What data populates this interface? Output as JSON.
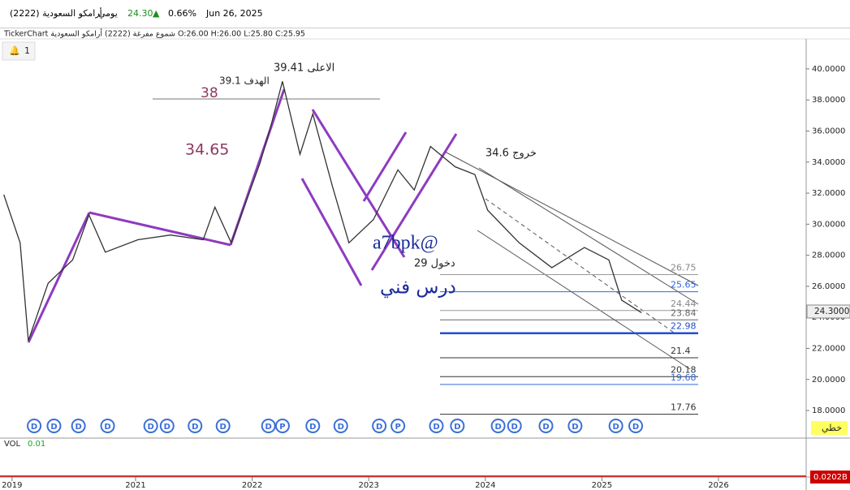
{
  "header": {
    "symbol": "أرامكو السعودية  (2222)",
    "period": "يومي",
    "price": "24.30",
    "change": "0.66%",
    "date": "Jun 26, 2025",
    "info": "TickerChart  شموع مفرغة  (2222)  أرامكو السعودية   O:26.00  H:26.00  L:25.80  C:25.95",
    "alerts": "1",
    "chart_type": "خطي",
    "volume": "VOL",
    "volume_value": "0.01",
    "volume_axis": "0.0202B"
  },
  "chart_data": {
    "type": "line",
    "color": "#333333",
    "x": [
      2019.87,
      2020.01,
      2020.08,
      2020.25,
      2020.46,
      2020.6,
      2020.74,
      2021.02,
      2021.3,
      2021.58,
      2021.68,
      2021.82,
      2022.07,
      2022.17,
      2022.26,
      2022.41,
      2022.52,
      2022.69,
      2022.83,
      2023.04,
      2023.25,
      2023.39,
      2023.53,
      2023.74,
      2023.91,
      2024.02,
      2024.29,
      2024.57,
      2024.85,
      2025.06,
      2025.17,
      2025.34
    ],
    "values": [
      31.9,
      28.8,
      22.5,
      26.2,
      27.7,
      30.6,
      28.2,
      29.0,
      29.3,
      29.0,
      31.1,
      28.8,
      34.0,
      36.6,
      39.2,
      34.5,
      37.1,
      32.4,
      28.8,
      30.3,
      33.5,
      32.2,
      35.0,
      33.7,
      33.2,
      30.9,
      28.8,
      27.2,
      28.5,
      27.7,
      25.1,
      24.3
    ],
    "xlim": [
      2019.837,
      2026.752
    ],
    "ylim": [
      16.33,
      41.93
    ],
    "xticks": [
      {
        "value": 2019.94,
        "label": "2019"
      },
      2021,
      2022,
      2023,
      2024,
      2025,
      2026
    ],
    "yticks": [
      {
        "value": 18,
        "label": "18.0000"
      },
      {
        "value": 20,
        "label": "20.0000"
      },
      {
        "value": 22,
        "label": "22.0000"
      },
      {
        "value": 24,
        "label": "24.0000"
      },
      {
        "value": 26,
        "label": "26.0000"
      },
      {
        "value": 28,
        "label": "28.0000"
      },
      {
        "value": 30,
        "label": "30.0000"
      },
      {
        "value": 32,
        "label": "32.0000"
      },
      {
        "value": 34,
        "label": "34.0000"
      },
      {
        "value": 36,
        "label": "36.0000"
      },
      {
        "value": 38,
        "label": "38.0000"
      },
      {
        "value": 40,
        "label": "40.0000"
      }
    ],
    "levels": [
      {
        "value": 26.75,
        "color": "#999999"
      },
      {
        "value": 25.65,
        "color": "#3366dd"
      },
      {
        "value": 24.44,
        "color": "#999999"
      },
      {
        "value": 23.84,
        "color": "#666666"
      },
      {
        "value": 22.98,
        "color": "#1f4fd6"
      },
      {
        "value": 21.4,
        "color": "#333333"
      },
      {
        "value": 20.18,
        "color": "#333333"
      },
      {
        "value": 19.68,
        "color": "#3366dd"
      },
      {
        "value": 17.76,
        "color": "#333333"
      }
    ],
    "events": {
      "x": [
        2020.13,
        2020.3,
        2020.51,
        2020.76,
        2021.13,
        2021.27,
        2021.51,
        2021.75,
        2022.14,
        2022.26,
        2022.52,
        2022.76,
        2023.09,
        2023.25,
        2023.58,
        2023.76,
        2024.11,
        2024.25,
        2024.52,
        2024.77,
        2025.12,
        2025.29
      ],
      "labels": [
        "D",
        "D",
        "D",
        "D",
        "D",
        "D",
        "D",
        "D",
        "D",
        "P",
        "D",
        "D",
        "D",
        "P",
        "D",
        "D",
        "D",
        "D",
        "D",
        "D",
        "D",
        "D"
      ]
    },
    "last_price": "24.3000",
    "annotations": [
      "الاعلى 39.41",
      "الهدف 39.1",
      "38",
      "34.65",
      "خروج 34.6",
      "a7bpk@",
      "دخول 29",
      "درس فني"
    ]
  }
}
